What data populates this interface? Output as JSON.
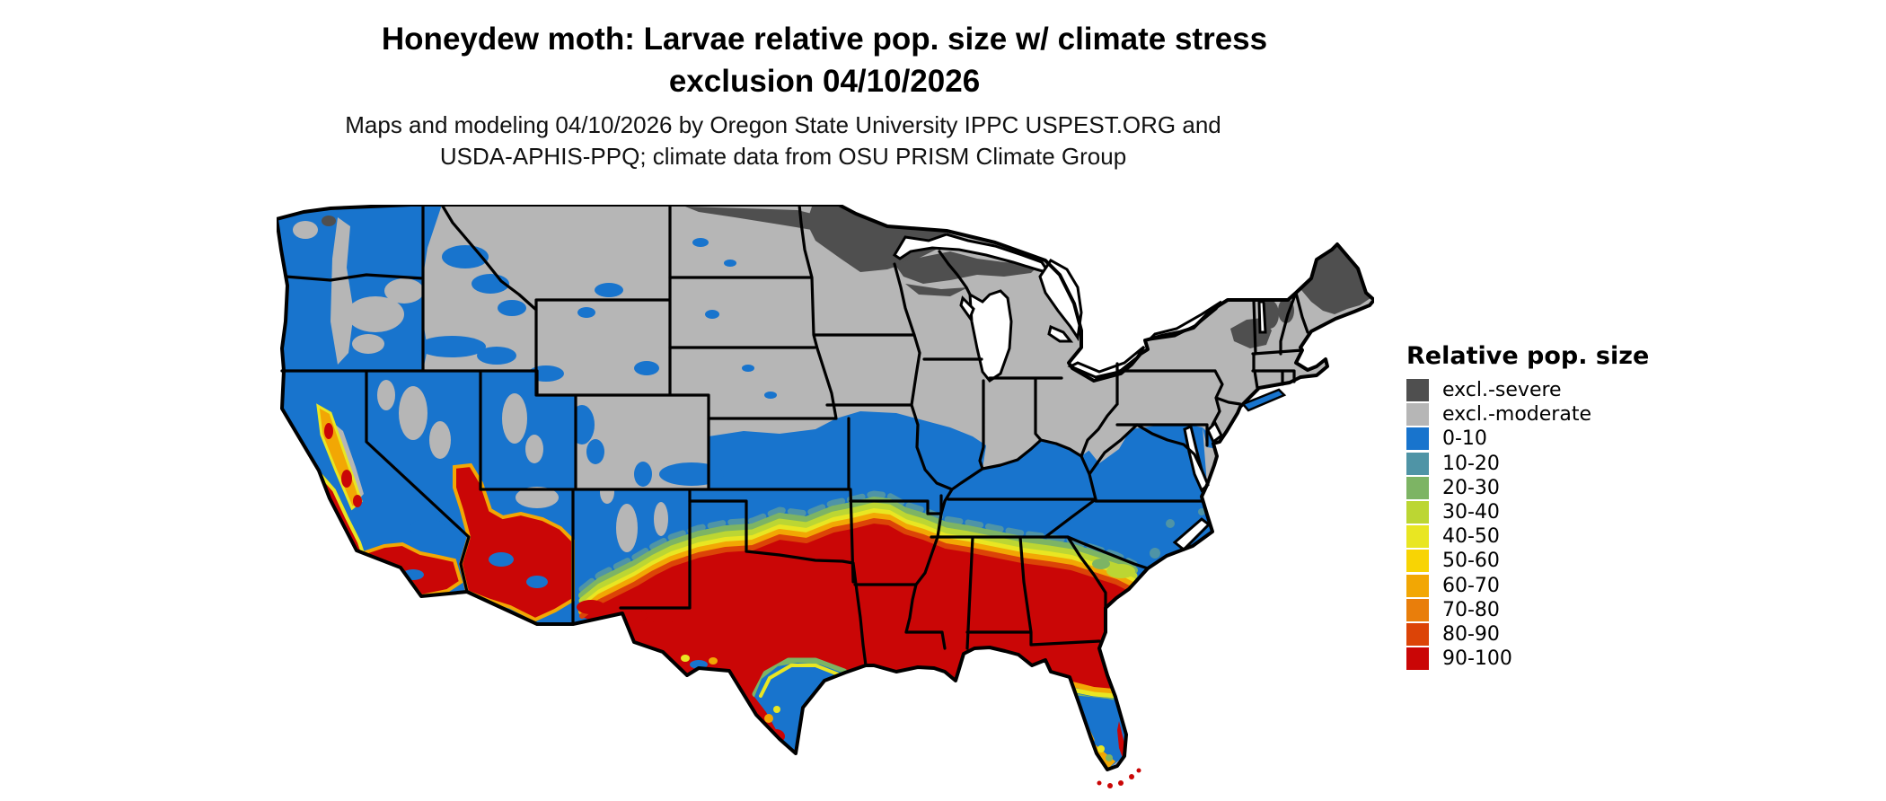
{
  "title": {
    "line1": "Honeydew moth: Larvae relative pop. size w/ climate stress",
    "line2": "exclusion 04/10/2026"
  },
  "subtitle": {
    "line1": "Maps and modeling 04/10/2026 by Oregon State University IPPC USPEST.ORG and",
    "line2": "USDA-APHIS-PPQ; climate data from OSU PRISM Climate Group"
  },
  "legend": {
    "title": "Relative pop. size",
    "items": [
      {
        "key": "severe",
        "label": "excl.-severe",
        "color": "#4f4f4f"
      },
      {
        "key": "moderate",
        "label": "excl.-moderate",
        "color": "#b6b6b6"
      },
      {
        "key": "c0",
        "label": "0-10",
        "color": "#1874cd"
      },
      {
        "key": "c10",
        "label": "10-20",
        "color": "#4f94a6"
      },
      {
        "key": "c20",
        "label": "20-30",
        "color": "#7db464"
      },
      {
        "key": "c30",
        "label": "30-40",
        "color": "#bcd633"
      },
      {
        "key": "c40",
        "label": "40-50",
        "color": "#e9e622"
      },
      {
        "key": "c50",
        "label": "50-60",
        "color": "#f8d404"
      },
      {
        "key": "c60",
        "label": "60-70",
        "color": "#f2a704"
      },
      {
        "key": "c70",
        "label": "70-80",
        "color": "#e97e0b"
      },
      {
        "key": "c80",
        "label": "80-90",
        "color": "#dc4407"
      },
      {
        "key": "c90",
        "label": "90-100",
        "color": "#ca0606"
      }
    ]
  },
  "map": {
    "background": "#ffffff",
    "border_color": "#000000",
    "water_color": "#ffffff",
    "classes": {
      "severe": "#4f4f4f",
      "moderate": "#b6b6b6",
      "c0": "#1874cd",
      "c10": "#4f94a6",
      "c20": "#7db464",
      "c30": "#bcd633",
      "c40": "#e9e622",
      "c50": "#f8d404",
      "c60": "#f2a704",
      "c70": "#e97e0b",
      "c80": "#dc4407",
      "c90": "#ca0606"
    },
    "map_summary": [
      {
        "region": "Northern Minnesota, N. North Dakota strip, N. Wisconsin / Upper Michigan, northern Maine, Adirondacks, N. New England mountains",
        "class": "excl.-severe"
      },
      {
        "region": "Northern plains, Rockies, upper Midwest, Ohio valley north, Pennsylvania, New York, interior New England",
        "class": "excl.-moderate"
      },
      {
        "region": "Pacific Northwest, Nevada/Utah basins, New Mexico, mid-latitude band (S. Kansas–Missouri–Kentucky–Tennessee–Virginia–Carolinas), South Texas coast, central/south Florida peninsula, NE coastal strip",
        "class": "0-10"
      },
      {
        "region": "Narrow transition bands (teal/green/yellow/orange) along the blue-to-red boundary through Oklahoma, Arkansas, N. Mississippi/Alabama, central Georgia/South Carolina, and around western hot zones",
        "class": "10-80"
      },
      {
        "region": "Central/South Texas, Louisiana, S. Mississippi/Alabama, S. Georgia, N. Florida, coastal South Carolina, S. Arizona, SE California, Central Valley patches, S. New Mexico, Florida Keys",
        "class": "80-100"
      }
    ]
  }
}
